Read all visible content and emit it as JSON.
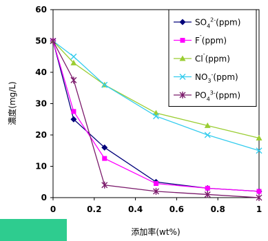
{
  "chart_data": {
    "type": "line",
    "xlabel": "添加率(wt%)",
    "ylabel": "濃度(mg/L)",
    "xlim": [
      0,
      1
    ],
    "ylim": [
      0,
      60
    ],
    "xticks": [
      0,
      0.2,
      0.4,
      0.6,
      0.8,
      1
    ],
    "yticks": [
      0,
      10,
      20,
      30,
      40,
      50,
      60
    ],
    "xtick_labels": [
      "0",
      "0.2",
      "0.4",
      "0.6",
      "0.8",
      "1"
    ],
    "ytick_labels": [
      "0",
      "10",
      "20",
      "30",
      "40",
      "50",
      "60"
    ],
    "grid": false,
    "legend_position": "top-right",
    "series": [
      {
        "name": "SO4 2-(ppm)",
        "label_main": "SO",
        "label_sub": "4",
        "label_sup": "2-",
        "label_tail": "(ppm)",
        "color": "#00007a",
        "marker": "diamond",
        "x": [
          0,
          0.1,
          0.25,
          0.5,
          0.75,
          1
        ],
        "y": [
          50,
          25,
          16,
          5,
          3,
          2
        ]
      },
      {
        "name": "F-(ppm)",
        "label_main": "F",
        "label_sub": "",
        "label_sup": "-",
        "label_tail": "(ppm)",
        "color": "#ff00ff",
        "marker": "square",
        "x": [
          0,
          0.1,
          0.25,
          0.5,
          0.75,
          1
        ],
        "y": [
          50,
          27.5,
          12.5,
          4.5,
          3,
          2
        ]
      },
      {
        "name": "Cl-(ppm)",
        "label_main": "Cl",
        "label_sub": "",
        "label_sup": "-",
        "label_tail": "(ppm)",
        "color": "#9acd32",
        "marker": "triangle",
        "x": [
          0,
          0.1,
          0.25,
          0.5,
          0.75,
          1
        ],
        "y": [
          50,
          43,
          36,
          27,
          23,
          19
        ]
      },
      {
        "name": "NO3-(ppm)",
        "label_main": "NO",
        "label_sub": "3",
        "label_sup": "-",
        "label_tail": "(ppm)",
        "color": "#33ccee",
        "marker": "x",
        "x": [
          0,
          0.1,
          0.25,
          0.5,
          0.75,
          1
        ],
        "y": [
          50,
          45,
          36,
          26,
          20,
          15
        ]
      },
      {
        "name": "PO4 3-(ppm)",
        "label_main": "PO",
        "label_sub": "4",
        "label_sup": "3-",
        "label_tail": "(ppm)",
        "color": "#7b1a6b",
        "marker": "star",
        "x": [
          0,
          0.1,
          0.25,
          0.5,
          0.75,
          1
        ],
        "y": [
          50,
          37.5,
          4,
          2,
          1,
          0
        ]
      }
    ]
  }
}
